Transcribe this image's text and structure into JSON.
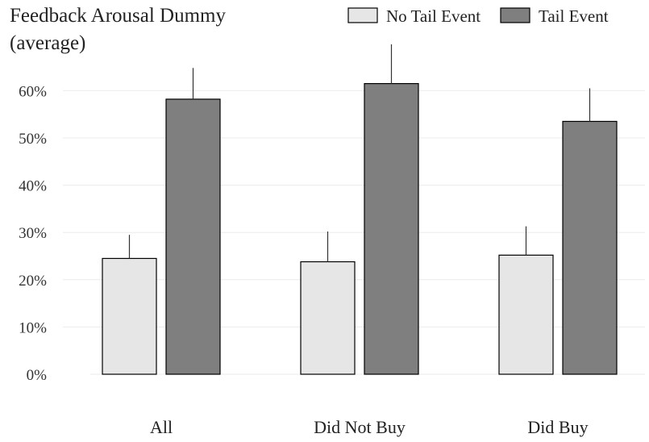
{
  "chart_data": {
    "type": "bar",
    "title_lines": [
      "Feedback Arousal Dummy",
      "(average)"
    ],
    "xlabel": "",
    "ylabel": "",
    "categories": [
      "All",
      "Did Not Buy",
      "Did Buy"
    ],
    "series": [
      {
        "name": "No Tail Event",
        "color": "#e6e6e6",
        "values": [
          0.245,
          0.238,
          0.252
        ],
        "error_upper": [
          0.295,
          0.302,
          0.313
        ]
      },
      {
        "name": "Tail Event",
        "color": "#7f7f7f",
        "values": [
          0.582,
          0.615,
          0.535
        ],
        "error_upper": [
          0.648,
          0.698,
          0.605
        ]
      }
    ],
    "ylim": [
      0,
      0.7
    ],
    "yticks": [
      0,
      0.1,
      0.2,
      0.3,
      0.4,
      0.5,
      0.6
    ],
    "ytick_labels": [
      "0%",
      "10%",
      "20%",
      "30%",
      "40%",
      "50%",
      "60%"
    ],
    "grid": true,
    "error_bars": "upper",
    "legend_position": "top-right"
  }
}
